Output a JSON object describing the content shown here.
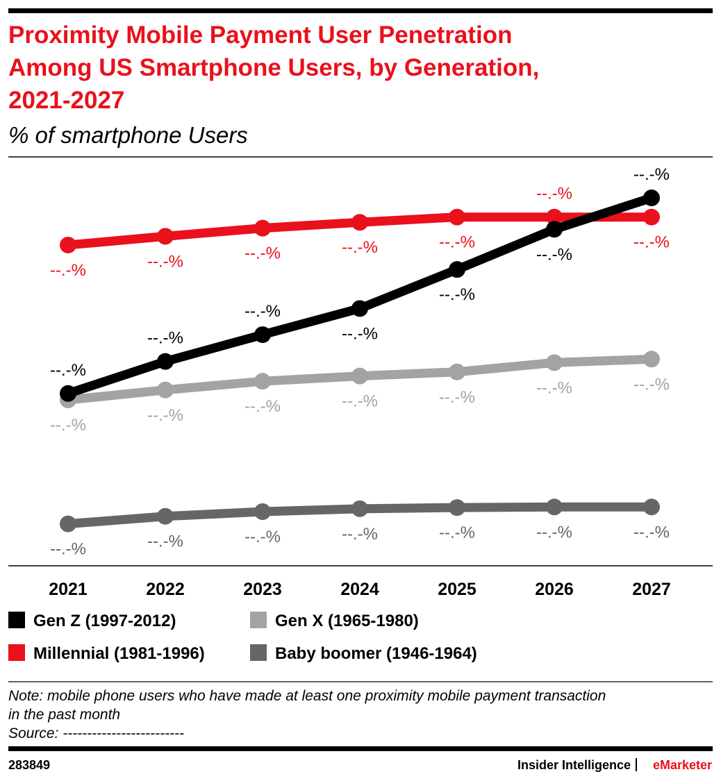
{
  "chart_data": {
    "type": "line",
    "title": [
      "Proximity Mobile Payment User Penetration",
      "Among US Smartphone Users, by Generation,",
      "2021-2027"
    ],
    "subtitle": "% of smartphone Users",
    "categories": [
      "2021",
      "2022",
      "2023",
      "2024",
      "2025",
      "2026",
      "2027"
    ],
    "ylim": [
      0,
      70
    ],
    "series": [
      {
        "name": "Gen Z (1997-2012)",
        "color": "#000000",
        "values": [
          29.6,
          35.1,
          39.7,
          44.2,
          50.9,
          57.8,
          63.2
        ],
        "value_labels": [
          "--.-%",
          "--.-%",
          "--.-%",
          "--.-%",
          "--.-%",
          "--.-%",
          "--.-%"
        ]
      },
      {
        "name": "Millennial (1981-1996)",
        "color": "#e8111c",
        "values": [
          55.1,
          56.6,
          58.0,
          59.0,
          59.9,
          59.9,
          59.9
        ],
        "value_labels": [
          "--.-%",
          "--.-%",
          "--.-%",
          "--.-%",
          "--.-%",
          "--.-%",
          "--.-%"
        ]
      },
      {
        "name": "Gen X (1965-1980)",
        "color": "#a3a3a3",
        "values": [
          28.5,
          30.2,
          31.7,
          32.6,
          33.3,
          34.9,
          35.5
        ],
        "value_labels": [
          "--.-%",
          "--.-%",
          "--.-%",
          "--.-%",
          "--.-%",
          "--.-%",
          "--.-%"
        ]
      },
      {
        "name": "Baby boomer (1946-1964)",
        "color": "#666666",
        "values": [
          7.2,
          8.5,
          9.3,
          9.8,
          10.0,
          10.1,
          10.1
        ],
        "value_labels": [
          "--.-%",
          "--.-%",
          "--.-%",
          "--.-%",
          "--.-%",
          "--.-%",
          "--.-%"
        ]
      }
    ],
    "note": [
      "Note: mobile phone users who have made at least one proximity mobile payment transaction",
      "in the past month"
    ],
    "source": "Source: -------------------------",
    "chart_id": "283849",
    "publisher": "Insider Intelligence",
    "brand": "eMarketer"
  }
}
